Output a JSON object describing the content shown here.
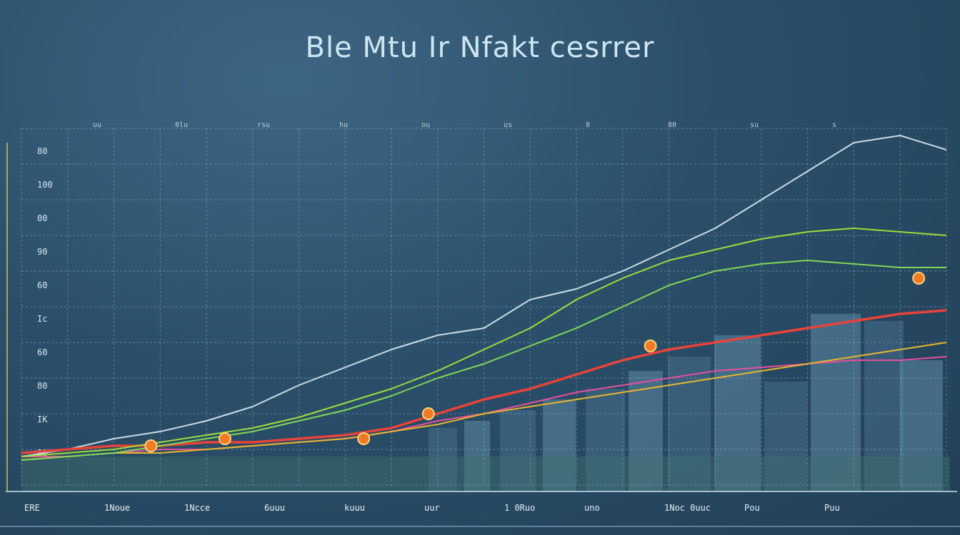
{
  "page": {
    "title": "Ble Mtu Ir Nfakt cesrrer"
  },
  "colors": {
    "background": "#2b4f6a",
    "grid": "#9fc0d4",
    "price_wave": "#e9f2f7",
    "red_trend": "#e8433a",
    "pink_trend": "#e64f9a",
    "yellow_trend": "#e7b62f",
    "green_trend": "#9fdc3a",
    "lime_trend": "#7ed957",
    "marker": "#f07a25"
  },
  "chart_data": {
    "type": "line",
    "title": "Ble Mtu Ir Nfakt cesrrer",
    "xlabel": "",
    "ylabel": "",
    "grid": true,
    "legend": "none",
    "top_tick_labels": [
      "uu",
      "8lu",
      "rsu",
      "hu",
      "ou",
      "us",
      "8",
      "80",
      "su",
      "s"
    ],
    "y_tick_labels": [
      "80",
      "100",
      "00",
      "90",
      "60",
      "Ic",
      "60",
      "80",
      "IK",
      "80"
    ],
    "x_tick_labels": [
      "ERE",
      "1Noue",
      "1Ncce",
      "6uuu",
      "kuuu",
      "uur",
      "1 0Ruo",
      "uno",
      "1Noc 0uuc",
      "Pou",
      "Puu"
    ],
    "ylim": [
      0,
      100
    ],
    "x": [
      0,
      5,
      10,
      15,
      20,
      25,
      30,
      35,
      40,
      45,
      50,
      55,
      60,
      65,
      70,
      75,
      80,
      85,
      90,
      95,
      100
    ],
    "series": [
      {
        "key": "price_wave",
        "values": [
          8,
          10,
          13,
          15,
          18,
          22,
          28,
          33,
          38,
          42,
          44,
          52,
          55,
          60,
          66,
          72,
          80,
          88,
          96,
          98,
          94
        ]
      },
      {
        "key": "red_trend",
        "values": [
          9,
          10,
          11,
          11,
          12,
          12,
          13,
          14,
          16,
          20,
          24,
          27,
          31,
          35,
          38,
          40,
          42,
          44,
          46,
          48,
          49
        ]
      },
      {
        "key": "pink_trend",
        "values": [
          8,
          8,
          9,
          10,
          10,
          11,
          12,
          13,
          15,
          18,
          20,
          23,
          26,
          28,
          30,
          32,
          33,
          34,
          35,
          35,
          36
        ]
      },
      {
        "key": "yellow_trend",
        "values": [
          7,
          8,
          9,
          9,
          10,
          11,
          12,
          13,
          15,
          17,
          20,
          22,
          24,
          26,
          28,
          30,
          32,
          34,
          36,
          38,
          40
        ]
      },
      {
        "key": "green_trend",
        "values": [
          8,
          9,
          10,
          12,
          14,
          16,
          19,
          23,
          27,
          32,
          38,
          44,
          52,
          58,
          63,
          66,
          69,
          71,
          72,
          71,
          70
        ]
      },
      {
        "key": "lime_trend",
        "values": [
          7,
          8,
          9,
          11,
          13,
          15,
          18,
          21,
          25,
          30,
          34,
          39,
          44,
          50,
          56,
          60,
          62,
          63,
          62,
          61,
          61
        ]
      }
    ],
    "markers": [
      {
        "x": 14,
        "y": 11
      },
      {
        "x": 22,
        "y": 13
      },
      {
        "x": 37,
        "y": 13
      },
      {
        "x": 44,
        "y": 20
      },
      {
        "x": 68,
        "y": 39
      },
      {
        "x": 97,
        "y": 58
      }
    ]
  }
}
